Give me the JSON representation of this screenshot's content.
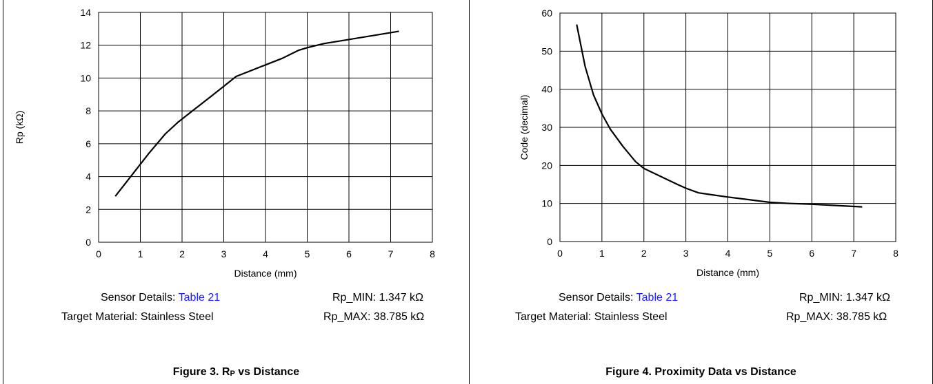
{
  "panels": [
    {
      "sensor_label": "Sensor Details:",
      "sensor_link": "Table 21",
      "rp_min": "Rp_MIN: 1.347 kΩ",
      "target": "Target Material: Stainless Steel",
      "rp_max": "Rp_MAX: 38.785 kΩ",
      "caption_prefix": "Figure 3. R",
      "caption_sub": "P",
      "caption_suffix": " vs Distance"
    },
    {
      "sensor_label": "Sensor Details:",
      "sensor_link": "Table 21",
      "rp_min": "Rp_MIN: 1.347 kΩ",
      "target": "Target Material: Stainless Steel",
      "rp_max": "Rp_MAX: 38.785 kΩ",
      "caption_prefix": "Figure 4. Proximity Data vs Distance",
      "caption_sub": "",
      "caption_suffix": ""
    }
  ],
  "chart_data": [
    {
      "type": "line",
      "xlabel": "Distance (mm)",
      "ylabel": "Rp (kΩ)",
      "xlim": [
        0,
        8
      ],
      "ylim": [
        0,
        14
      ],
      "xticks": [
        0,
        1,
        2,
        3,
        4,
        5,
        6,
        7,
        8
      ],
      "yticks": [
        0,
        2,
        4,
        6,
        8,
        10,
        12,
        14
      ],
      "grid": true,
      "series": [
        {
          "x": [
            0.4,
            0.8,
            1.2,
            1.6,
            1.9,
            2.3,
            2.7,
            3.0,
            3.3,
            3.6,
            4.0,
            4.4,
            4.8,
            5.0,
            5.4,
            6.0,
            6.6,
            7.2
          ],
          "y": [
            2.8,
            4.1,
            5.4,
            6.6,
            7.3,
            8.1,
            8.9,
            9.5,
            10.1,
            10.4,
            10.8,
            11.2,
            11.7,
            11.85,
            12.1,
            12.35,
            12.6,
            12.85
          ]
        }
      ]
    },
    {
      "type": "line",
      "xlabel": "Distance (mm)",
      "ylabel": "Code (decimal)",
      "xlim": [
        0,
        8
      ],
      "ylim": [
        0,
        60
      ],
      "xticks": [
        0,
        1,
        2,
        3,
        4,
        5,
        6,
        7,
        8
      ],
      "yticks": [
        0,
        10,
        20,
        30,
        40,
        50,
        60
      ],
      "grid": true,
      "series": [
        {
          "x": [
            0.4,
            0.6,
            0.8,
            1.0,
            1.2,
            1.5,
            1.8,
            2.0,
            2.4,
            2.8,
            3.0,
            3.3,
            3.6,
            4.0,
            4.5,
            5.0,
            5.5,
            6.0,
            6.5,
            7.2
          ],
          "y": [
            57,
            46,
            38.5,
            33.5,
            29.5,
            25,
            21,
            19.2,
            17.1,
            15,
            14,
            12.8,
            12.3,
            11.7,
            11,
            10.3,
            10,
            9.8,
            9.5,
            9.1
          ]
        }
      ]
    }
  ]
}
